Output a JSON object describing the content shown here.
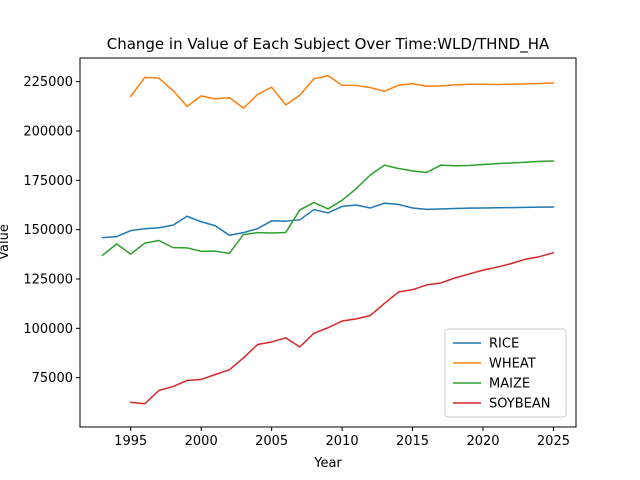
{
  "chart_data": {
    "type": "line",
    "title": "Change in Value of Each Subject Over Time:WLD/THND_HA",
    "xlabel": "Year",
    "ylabel": "Value",
    "xlim": [
      1991.4,
      2026.6
    ],
    "ylim": [
      50000,
      237000
    ],
    "xticks": [
      1995,
      2000,
      2005,
      2010,
      2015,
      2020,
      2025
    ],
    "xtick_labels": [
      "1995",
      "2000",
      "2005",
      "2010",
      "2015",
      "2020",
      "2025"
    ],
    "yticks": [
      75000,
      100000,
      125000,
      150000,
      175000,
      200000,
      225000
    ],
    "ytick_labels": [
      "75000",
      "100000",
      "125000",
      "150000",
      "175000",
      "200000",
      "225000"
    ],
    "grid": false,
    "legend_position": "bottom-right",
    "series": [
      {
        "name": "RICE",
        "color": "#1f77b4",
        "x": [
          1993,
          1994,
          1995,
          1996,
          1997,
          1998,
          1999,
          2000,
          2001,
          2002,
          2003,
          2004,
          2005,
          2006,
          2007,
          2008,
          2009,
          2010,
          2011,
          2012,
          2013,
          2014,
          2015,
          2016,
          2017,
          2018,
          2019,
          2020,
          2021,
          2022,
          2023,
          2024,
          2025
        ],
        "y": [
          146000,
          146500,
          149500,
          150500,
          151000,
          152300,
          156800,
          154000,
          152000,
          147200,
          148500,
          150500,
          154500,
          154300,
          155000,
          160200,
          158500,
          161800,
          162500,
          161000,
          163400,
          162800,
          161000,
          160300,
          160500,
          160700,
          160900,
          161000,
          161100,
          161200,
          161300,
          161400,
          161500
        ]
      },
      {
        "name": "WHEAT",
        "color": "#ff7f0e",
        "x": [
          1995,
          1996,
          1997,
          1998,
          1999,
          2000,
          2001,
          2002,
          2003,
          2004,
          2005,
          2006,
          2007,
          2008,
          2009,
          2010,
          2011,
          2012,
          2013,
          2014,
          2015,
          2016,
          2017,
          2018,
          2019,
          2020,
          2021,
          2022,
          2023,
          2024,
          2025
        ],
        "y": [
          217500,
          227200,
          226800,
          220500,
          212500,
          217800,
          216300,
          216900,
          211600,
          218500,
          222200,
          213200,
          218200,
          226500,
          228000,
          223200,
          223100,
          222000,
          220100,
          223200,
          224000,
          222700,
          222900,
          223400,
          223700,
          223700,
          223600,
          223700,
          223900,
          224100,
          224400
        ]
      },
      {
        "name": "MAIZE",
        "color": "#2ca02c",
        "x": [
          1993,
          1994,
          1995,
          1996,
          1997,
          1998,
          1999,
          2000,
          2001,
          2002,
          2003,
          2004,
          2005,
          2006,
          2007,
          2008,
          2009,
          2010,
          2011,
          2012,
          2013,
          2014,
          2015,
          2016,
          2017,
          2018,
          2019,
          2020,
          2021,
          2022,
          2023,
          2024,
          2025
        ],
        "y": [
          137000,
          142800,
          137600,
          143200,
          144500,
          140900,
          140800,
          139000,
          139100,
          138000,
          147500,
          148500,
          148300,
          148600,
          160000,
          163800,
          160500,
          164900,
          170800,
          177700,
          182700,
          181000,
          179800,
          179000,
          182700,
          182400,
          182500,
          183000,
          183500,
          183800,
          184200,
          184600,
          184800
        ]
      },
      {
        "name": "SOYBEAN",
        "color": "#d62728",
        "x": [
          1995,
          1996,
          1997,
          1998,
          1999,
          2000,
          2001,
          2002,
          2003,
          2004,
          2005,
          2006,
          2007,
          2008,
          2009,
          2010,
          2011,
          2012,
          2013,
          2014,
          2015,
          2016,
          2017,
          2018,
          2019,
          2020,
          2021,
          2022,
          2023,
          2024,
          2025
        ],
        "y": [
          62500,
          61800,
          68500,
          70500,
          73600,
          74100,
          76600,
          79000,
          85000,
          91800,
          93100,
          95200,
          90600,
          97500,
          100300,
          103700,
          104800,
          106500,
          112600,
          118400,
          119600,
          122000,
          123000,
          125500,
          127500,
          129500,
          131000,
          132800,
          135000,
          136300,
          138300
        ]
      }
    ]
  }
}
